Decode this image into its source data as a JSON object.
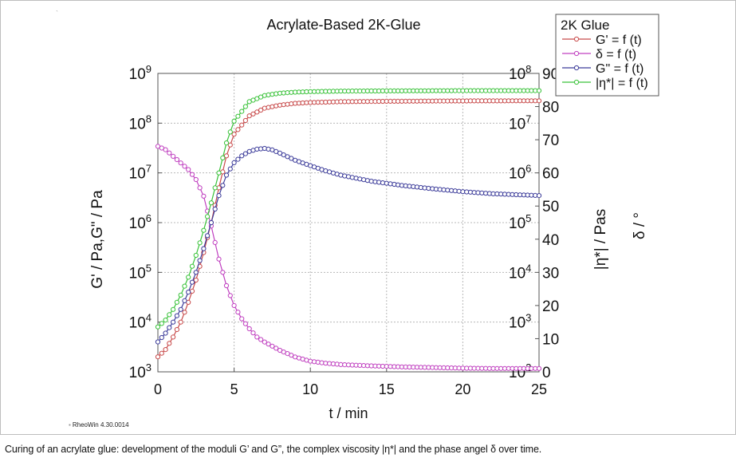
{
  "chart_data": {
    "type": "line",
    "title": "Acrylate-Based 2K-Glue",
    "xlabel": "t / min",
    "ylabel_left": "G' / Pa,G\" / Pa",
    "ylabel_right1": "|η*| / Pas",
    "ylabel_right2": "δ / °",
    "xlim": [
      0,
      25
    ],
    "x_ticks": [
      "0",
      "5",
      "10",
      "15",
      "20",
      "25"
    ],
    "x_tick_values": [
      0,
      5,
      10,
      15,
      20,
      25
    ],
    "ylim_left_log10": [
      3,
      9
    ],
    "y_left_ticks": [
      {
        "base": "10",
        "exp": "3"
      },
      {
        "base": "10",
        "exp": "4"
      },
      {
        "base": "10",
        "exp": "5"
      },
      {
        "base": "10",
        "exp": "6"
      },
      {
        "base": "10",
        "exp": "7"
      },
      {
        "base": "10",
        "exp": "8"
      },
      {
        "base": "10",
        "exp": "9"
      }
    ],
    "ylim_right1_log10": [
      2,
      8
    ],
    "y_right1_ticks": [
      {
        "base": "10",
        "exp": "2"
      },
      {
        "base": "10",
        "exp": "3"
      },
      {
        "base": "10",
        "exp": "4"
      },
      {
        "base": "10",
        "exp": "5"
      },
      {
        "base": "10",
        "exp": "6"
      },
      {
        "base": "10",
        "exp": "7"
      },
      {
        "base": "10",
        "exp": "8"
      }
    ],
    "ylim_right2": [
      0,
      90
    ],
    "y_right2_ticks": [
      "0",
      "10",
      "20",
      "30",
      "40",
      "50",
      "60",
      "70",
      "80",
      "90"
    ],
    "legend_title": "2K Glue",
    "legend_position": "top-right",
    "grid": true,
    "series": [
      {
        "name": "G' = f (t)",
        "color": "#c84a4a",
        "axis": "left",
        "log": true,
        "x": [
          0,
          0.5,
          1,
          1.5,
          2,
          2.5,
          3,
          3.5,
          4,
          4.5,
          5,
          6,
          7,
          8,
          9,
          10,
          12,
          15,
          20,
          25
        ],
        "y": [
          2000,
          2800,
          5000,
          10000,
          25000,
          70000,
          250000,
          1000000,
          5000000,
          22000000,
          60000000,
          140000000,
          200000000,
          230000000,
          250000000,
          260000000,
          270000000,
          275000000,
          280000000,
          282000000
        ]
      },
      {
        "name": "δ = f (t)",
        "color": "#c040c0",
        "axis": "right2",
        "log": false,
        "x": [
          0,
          0.5,
          1,
          1.5,
          2,
          2.5,
          3,
          3.5,
          4,
          4.5,
          5,
          5.5,
          6,
          6.5,
          7,
          8,
          9,
          10,
          11,
          12,
          14,
          16,
          18,
          20,
          22,
          25
        ],
        "y": [
          68,
          67,
          65,
          63,
          61,
          58,
          53,
          44,
          34,
          26,
          20,
          16,
          13,
          10.5,
          9,
          6.5,
          4.5,
          3.2,
          2.6,
          2.2,
          1.8,
          1.5,
          1.3,
          1.1,
          1.0,
          1.0
        ]
      },
      {
        "name": "G\" = f (t)",
        "color": "#3c3c9a",
        "axis": "left",
        "log": true,
        "x": [
          0,
          0.5,
          1,
          1.5,
          2,
          2.5,
          3,
          3.5,
          4,
          4.5,
          5,
          5.5,
          6,
          6.5,
          7,
          7.5,
          8,
          9,
          10,
          11,
          12,
          14,
          16,
          18,
          20,
          22,
          25
        ],
        "y": [
          4000,
          6000,
          10000,
          18000,
          40000,
          100000,
          300000,
          1000000,
          3500000,
          9000000,
          16000000,
          22000000,
          27000000,
          30000000,
          31000000,
          29000000,
          25000000,
          18000000,
          14000000,
          11000000,
          9000000,
          6800000,
          5600000,
          4800000,
          4200000,
          3800000,
          3500000
        ]
      },
      {
        "name": "|η*| = f (t)",
        "color": "#39c239",
        "axis": "right1",
        "log": true,
        "x": [
          0,
          0.5,
          1,
          1.5,
          2,
          2.5,
          3,
          3.5,
          4,
          4.5,
          5,
          6,
          7,
          8,
          9,
          10,
          12,
          15,
          20,
          25
        ],
        "y": [
          800,
          1100,
          1800,
          3500,
          8000,
          22000,
          70000,
          250000,
          1000000,
          4000000,
          11000000,
          27000000,
          36000000,
          40000000,
          42000000,
          43000000,
          44000000,
          44500000,
          45000000,
          45000000
        ]
      }
    ]
  },
  "watermark": "RheoWin 4.30.0014",
  "top_mark": "`",
  "caption": "Curing of an acrylate glue: development of the moduli G’ and G”, the complex viscosity |η*| and the phase angel δ over time."
}
